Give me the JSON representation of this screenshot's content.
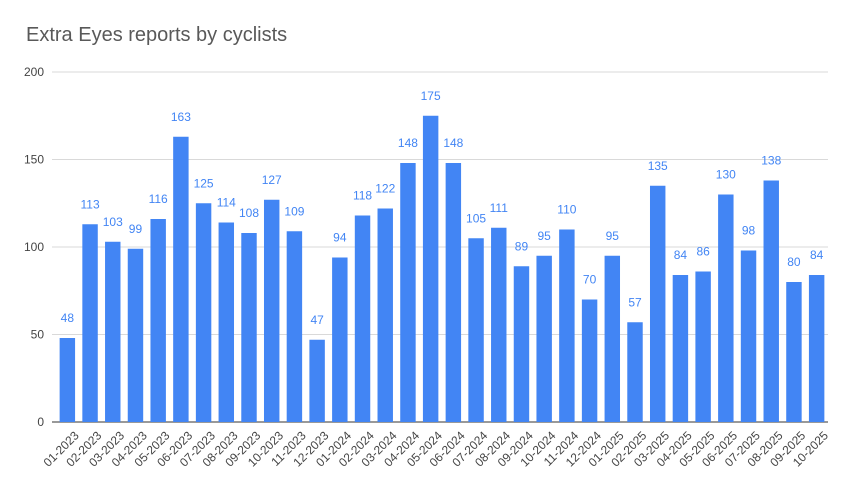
{
  "chart_data": {
    "type": "bar",
    "title": "Extra Eyes reports by cyclists",
    "xlabel": "",
    "ylabel": "",
    "ylim": [
      0,
      200
    ],
    "yticks": [
      0,
      50,
      100,
      150,
      200
    ],
    "grid": true,
    "legend": "none",
    "colors": {
      "bar": "#4285f4",
      "label": "#4285f4",
      "grid": "#d9d9d9",
      "axis_text": "#444444",
      "title": "#595959"
    },
    "categories": [
      "01-2023",
      "02-2023",
      "03-2023",
      "04-2023",
      "05-2023",
      "06-2023",
      "07-2023",
      "08-2023",
      "09-2023",
      "10-2023",
      "11-2023",
      "12-2023",
      "01-2024",
      "02-2024",
      "03-2024",
      "04-2024",
      "05-2024",
      "06-2024",
      "07-2024",
      "08-2024",
      "09-2024",
      "10-2024",
      "11-2024",
      "12-2024",
      "01-2025",
      "02-2025",
      "03-2025",
      "04-2025",
      "05-2025",
      "06-2025",
      "07-2025",
      "08-2025",
      "09-2025",
      "10-2025"
    ],
    "values": [
      48,
      113,
      103,
      99,
      116,
      163,
      125,
      114,
      108,
      127,
      109,
      47,
      94,
      118,
      122,
      148,
      175,
      148,
      105,
      111,
      89,
      95,
      110,
      70,
      95,
      57,
      135,
      84,
      86,
      130,
      98,
      138,
      80,
      84
    ]
  }
}
